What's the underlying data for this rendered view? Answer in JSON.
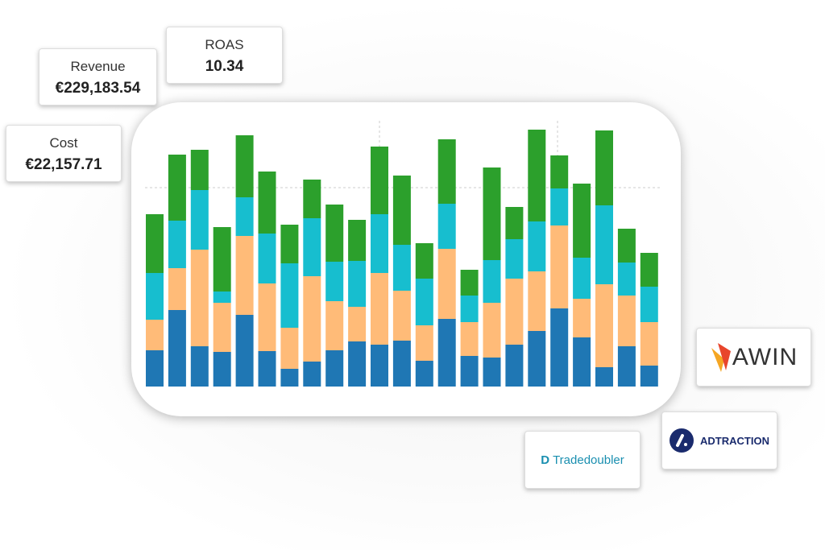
{
  "cards": [
    {
      "label": "Revenue",
      "value": "€229,183.54"
    },
    {
      "label": "ROAS",
      "value": "10.34"
    },
    {
      "label": "Cost",
      "value": "€22,157.71"
    }
  ],
  "logos": [
    "AWIN",
    "ADTRACTION",
    "Tradedoubler"
  ],
  "chart_data": {
    "type": "bar",
    "stacked": true,
    "ylim": [
      0,
      320
    ],
    "series": [
      {
        "color": "#1f77b4",
        "values": [
          45,
          95,
          50,
          43,
          89,
          44,
          22,
          31,
          45,
          56,
          52,
          57,
          32,
          84,
          38,
          36,
          52,
          69,
          97,
          61,
          24,
          50,
          26
        ]
      },
      {
        "color": "#ffbb78",
        "values": [
          38,
          52,
          120,
          61,
          98,
          84,
          51,
          106,
          61,
          43,
          89,
          62,
          44,
          87,
          42,
          68,
          82,
          74,
          103,
          48,
          103,
          63,
          54
        ]
      },
      {
        "color": "#17becf",
        "values": [
          58,
          59,
          74,
          14,
          48,
          62,
          80,
          72,
          49,
          57,
          73,
          57,
          58,
          56,
          33,
          53,
          49,
          62,
          46,
          51,
          98,
          41,
          44
        ]
      },
      {
        "color": "#2ca02c",
        "values": [
          73,
          82,
          50,
          80,
          77,
          77,
          48,
          48,
          71,
          51,
          84,
          86,
          44,
          80,
          32,
          115,
          40,
          114,
          41,
          92,
          93,
          42,
          42
        ]
      }
    ]
  }
}
